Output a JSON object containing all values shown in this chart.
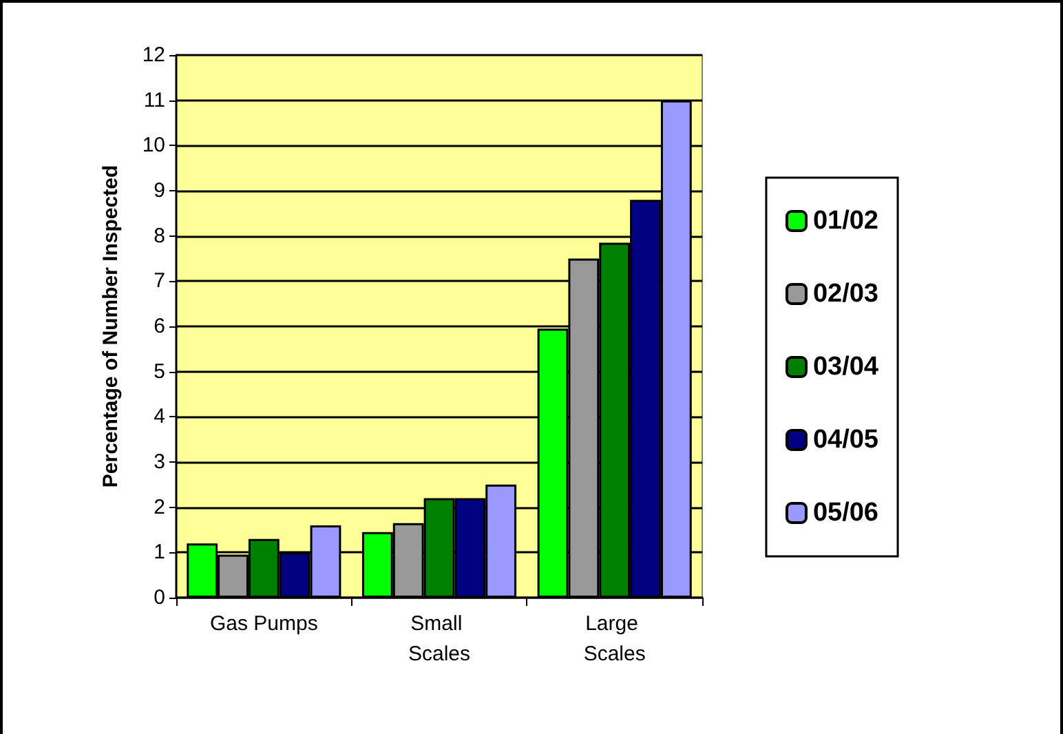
{
  "chart_data": {
    "type": "bar",
    "ylabel": "Percentage of Number Inspected",
    "categories": [
      "Gas Pumps",
      "Small Scales",
      "Large Scales"
    ],
    "series": [
      {
        "name": "01/02",
        "color": "#00ff00",
        "values": [
          1.2,
          1.45,
          5.95
        ]
      },
      {
        "name": "02/03",
        "color": "#999999",
        "values": [
          0.95,
          1.65,
          7.5
        ]
      },
      {
        "name": "03/04",
        "color": "#008000",
        "values": [
          1.3,
          2.2,
          7.85
        ]
      },
      {
        "name": "04/05",
        "color": "#000080",
        "values": [
          1.0,
          2.2,
          8.8
        ]
      },
      {
        "name": "05/06",
        "color": "#9999ff",
        "values": [
          1.6,
          2.5,
          11.0
        ]
      }
    ],
    "ylim": [
      0,
      12
    ],
    "yticks": [
      0,
      1,
      2,
      3,
      4,
      5,
      6,
      7,
      8,
      9,
      10,
      11,
      12
    ],
    "grid": "y",
    "legend": "right"
  }
}
